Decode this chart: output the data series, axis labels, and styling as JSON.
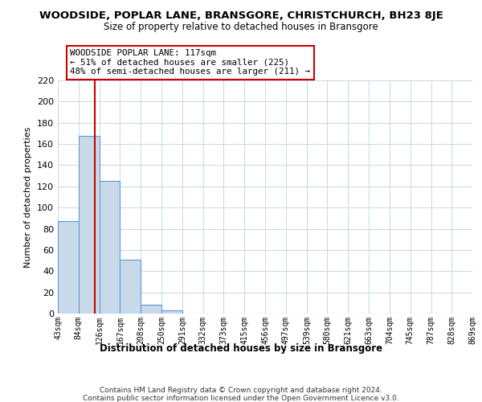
{
  "title": "WOODSIDE, POPLAR LANE, BRANSGORE, CHRISTCHURCH, BH23 8JE",
  "subtitle": "Size of property relative to detached houses in Bransgore",
  "xlabel": "Distribution of detached houses by size in Bransgore",
  "ylabel": "Number of detached properties",
  "bar_edges": [
    43,
    84,
    126,
    167,
    208,
    250,
    291,
    332,
    373,
    415,
    456,
    497,
    539,
    580,
    621,
    663,
    704,
    745,
    787,
    828,
    869
  ],
  "bar_heights": [
    87,
    168,
    125,
    51,
    8,
    3,
    0,
    0,
    0,
    0,
    0,
    0,
    0,
    0,
    0,
    0,
    0,
    0,
    0,
    0
  ],
  "bar_color": "#c8d9ea",
  "bar_edge_color": "#5b9bd5",
  "vline_x": 117,
  "vline_color": "#cc0000",
  "ylim": [
    0,
    220
  ],
  "yticks": [
    0,
    20,
    40,
    60,
    80,
    100,
    120,
    140,
    160,
    180,
    200,
    220
  ],
  "xtick_labels": [
    "43sqm",
    "84sqm",
    "126sqm",
    "167sqm",
    "208sqm",
    "250sqm",
    "291sqm",
    "332sqm",
    "373sqm",
    "415sqm",
    "456sqm",
    "497sqm",
    "539sqm",
    "580sqm",
    "621sqm",
    "663sqm",
    "704sqm",
    "745sqm",
    "787sqm",
    "828sqm",
    "869sqm"
  ],
  "annotation_box_text": "WOODSIDE POPLAR LANE: 117sqm\n← 51% of detached houses are smaller (225)\n48% of semi-detached houses are larger (211) →",
  "bg_color": "#ffffff",
  "grid_color": "#c8d8e8",
  "footer_line1": "Contains HM Land Registry data © Crown copyright and database right 2024.",
  "footer_line2": "Contains public sector information licensed under the Open Government Licence v3.0."
}
